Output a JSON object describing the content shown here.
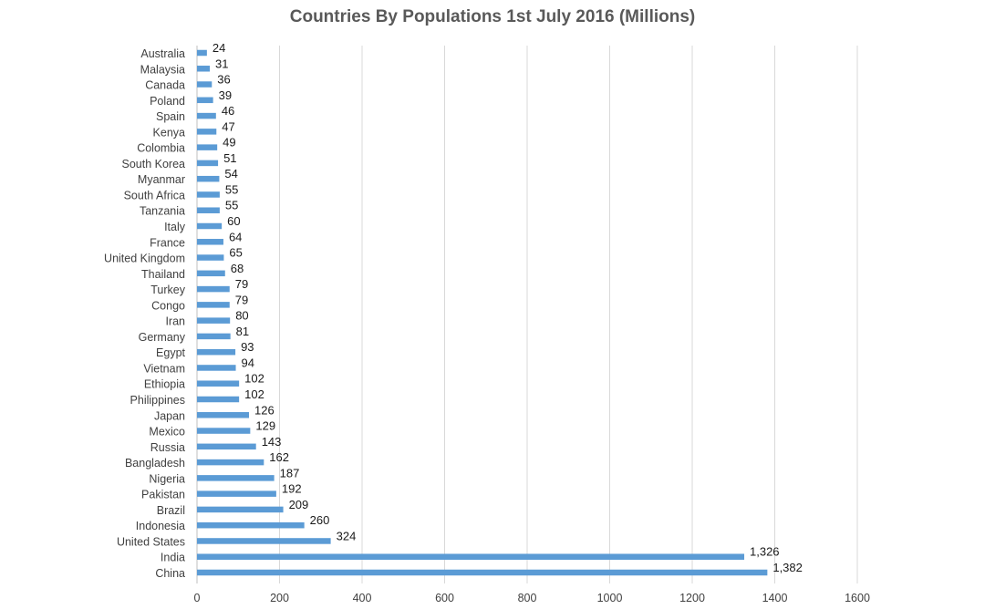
{
  "chart_data": {
    "type": "bar",
    "orientation": "horizontal",
    "title": "Countries By Populations 1st July 2016 (Millions)",
    "xlabel": "",
    "ylabel": "",
    "xlim": [
      0,
      1600
    ],
    "x_ticks": [
      "0",
      "200",
      "400",
      "600",
      "800",
      "1000",
      "1200",
      "1400",
      "1600"
    ],
    "x_tick_values": [
      0,
      200,
      400,
      600,
      800,
      1000,
      1200,
      1400,
      1600
    ],
    "grid": true,
    "bar_color": "#5b9bd5",
    "categories": [
      "Australia",
      "Malaysia",
      "Canada",
      "Poland",
      "Spain",
      "Kenya",
      "Colombia",
      "South Korea",
      "Myanmar",
      "South Africa",
      "Tanzania",
      "Italy",
      "France",
      "United Kingdom",
      "Thailand",
      "Turkey",
      "Congo",
      "Iran",
      "Germany",
      "Egypt",
      "Vietnam",
      "Ethiopia",
      "Philippines",
      "Japan",
      "Mexico",
      "Russia",
      "Bangladesh",
      "Nigeria",
      "Pakistan",
      "Brazil",
      "Indonesia",
      "United States",
      "India",
      "China"
    ],
    "values": [
      24,
      31,
      36,
      39,
      46,
      47,
      49,
      51,
      54,
      55,
      55,
      60,
      64,
      65,
      68,
      79,
      79,
      80,
      81,
      93,
      94,
      102,
      102,
      126,
      129,
      143,
      162,
      187,
      192,
      209,
      260,
      324,
      1326,
      1382
    ],
    "value_labels": [
      "24",
      "31",
      "36",
      "39",
      "46",
      "47",
      "49",
      "51",
      "54",
      "55",
      "55",
      "60",
      "64",
      "65",
      "68",
      "79",
      "79",
      "80",
      "81",
      "93",
      "94",
      "102",
      "102",
      "126",
      "129",
      "143",
      "162",
      "187",
      "192",
      "209",
      "260",
      "324",
      "1,326",
      "1,382"
    ]
  }
}
